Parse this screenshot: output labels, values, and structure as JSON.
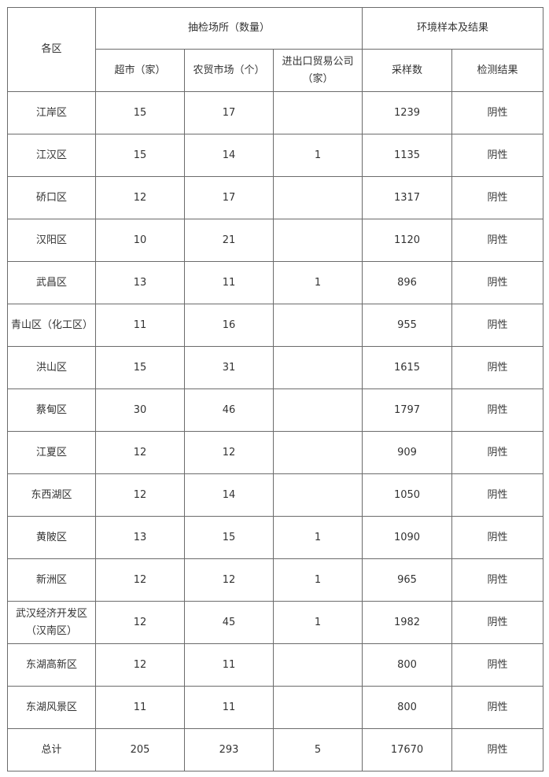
{
  "header": {
    "district": "各区",
    "group_sites": "抽检场所（数量）",
    "group_env": "环境样本及结果",
    "supermarket": "超市（家）",
    "farmers_market": "农贸市场（个）",
    "import_export": "进出口贸易公司（家）",
    "samples": "采样数",
    "result": "检测结果"
  },
  "rows": [
    {
      "district": "江岸区",
      "supermarket": "15",
      "market": "17",
      "trade": "",
      "samples": "1239",
      "result": "阴性"
    },
    {
      "district": "江汉区",
      "supermarket": "15",
      "market": "14",
      "trade": "1",
      "samples": "1135",
      "result": "阴性"
    },
    {
      "district": "硚口区",
      "supermarket": "12",
      "market": "17",
      "trade": "",
      "samples": "1317",
      "result": "阴性"
    },
    {
      "district": "汉阳区",
      "supermarket": "10",
      "market": "21",
      "trade": "",
      "samples": "1120",
      "result": "阴性"
    },
    {
      "district": "武昌区",
      "supermarket": "13",
      "market": "11",
      "trade": "1",
      "samples": "896",
      "result": "阴性"
    },
    {
      "district": "青山区（化工区）",
      "supermarket": "11",
      "market": "16",
      "trade": "",
      "samples": "955",
      "result": "阴性"
    },
    {
      "district": "洪山区",
      "supermarket": "15",
      "market": "31",
      "trade": "",
      "samples": "1615",
      "result": "阴性"
    },
    {
      "district": "蔡甸区",
      "supermarket": "30",
      "market": "46",
      "trade": "",
      "samples": "1797",
      "result": "阴性"
    },
    {
      "district": "江夏区",
      "supermarket": "12",
      "market": "12",
      "trade": "",
      "samples": "909",
      "result": "阴性"
    },
    {
      "district": "东西湖区",
      "supermarket": "12",
      "market": "14",
      "trade": "",
      "samples": "1050",
      "result": "阴性"
    },
    {
      "district": "黄陂区",
      "supermarket": "13",
      "market": "15",
      "trade": "1",
      "samples": "1090",
      "result": "阴性"
    },
    {
      "district": "新洲区",
      "supermarket": "12",
      "market": "12",
      "trade": "1",
      "samples": "965",
      "result": "阴性"
    },
    {
      "district": "武汉经济开发区（汉南区）",
      "supermarket": "12",
      "market": "45",
      "trade": "1",
      "samples": "1982",
      "result": "阴性"
    },
    {
      "district": "东湖高新区",
      "supermarket": "12",
      "market": "11",
      "trade": "",
      "samples": "800",
      "result": "阴性"
    },
    {
      "district": "东湖风景区",
      "supermarket": "11",
      "market": "11",
      "trade": "",
      "samples": "800",
      "result": "阴性"
    },
    {
      "district": "总计",
      "supermarket": "205",
      "market": "293",
      "trade": "5",
      "samples": "17670",
      "result": "阴性"
    }
  ]
}
